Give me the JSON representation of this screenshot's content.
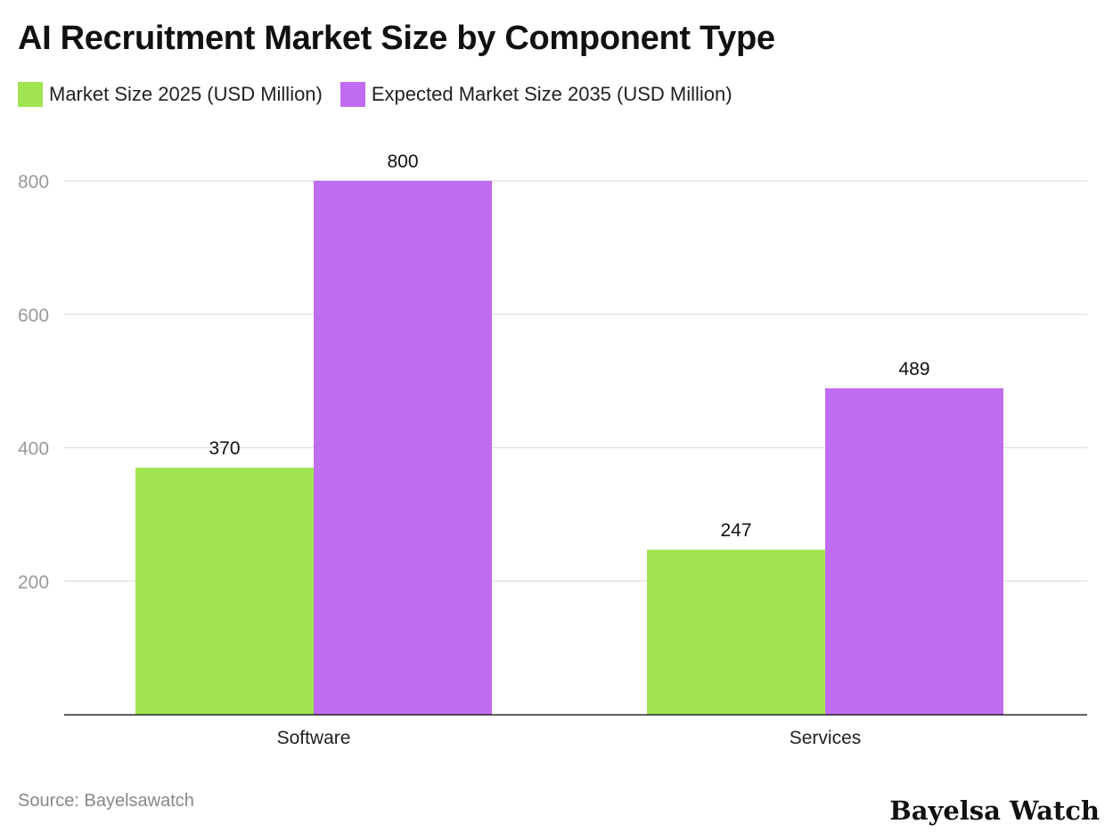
{
  "chart_data": {
    "type": "bar",
    "title": "AI Recruitment Market Size by Component Type",
    "categories": [
      "Software",
      "Services"
    ],
    "series": [
      {
        "name": "Market Size 2025 (USD Million)",
        "values": [
          370,
          247
        ],
        "color": "#a0e451"
      },
      {
        "name": "Expected Market Size 2035 (USD Million)",
        "values": [
          800,
          489
        ],
        "color": "#c06cf0"
      }
    ],
    "yticks": [
      200,
      400,
      600,
      800
    ],
    "ylim": [
      0,
      800
    ],
    "xlabel": "",
    "ylabel": "",
    "grid": true,
    "legend": "top-left"
  },
  "source": "Source: Bayelsawatch",
  "logo": "Bayelsa Watch"
}
